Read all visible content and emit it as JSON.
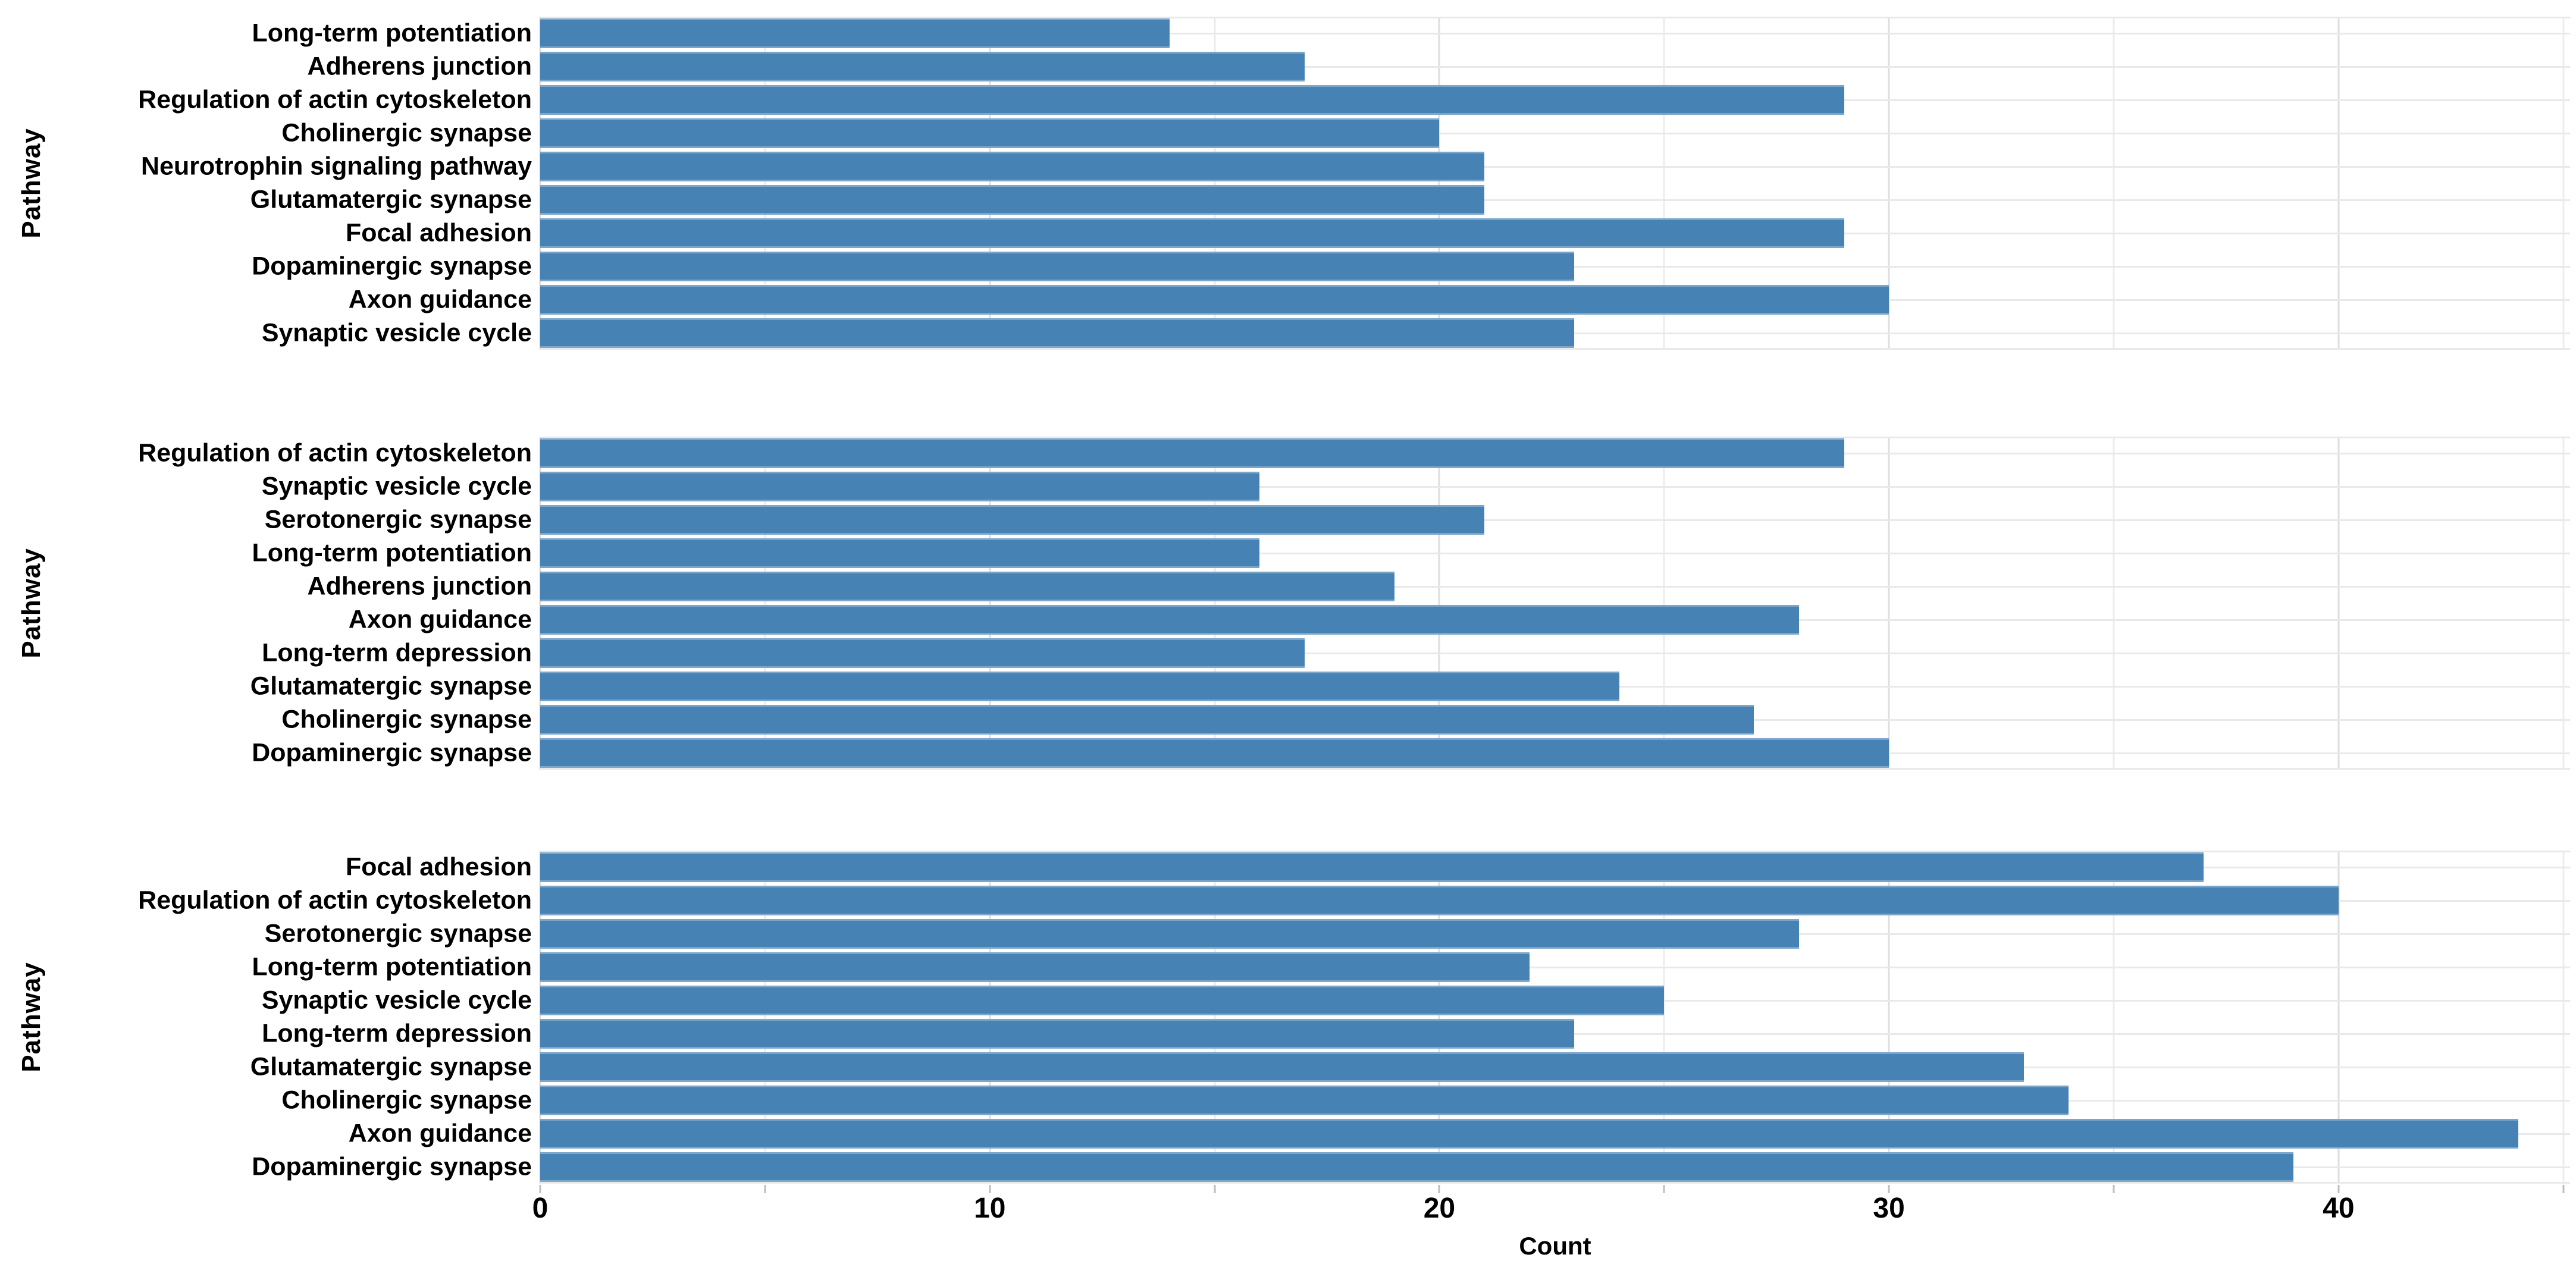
{
  "colors": {
    "bar": "#4682B4",
    "grid_major": "#dedede",
    "grid_minor": "#ececec",
    "grid_row": "#e9e9e9",
    "tick_mark": "#bdbdbd",
    "text": "#000000",
    "background": "#ffffff"
  },
  "axis": {
    "xlabel": "Count",
    "tick_labels": [
      "0",
      "10",
      "20",
      "30",
      "40"
    ],
    "tick_values": [
      0,
      10,
      20,
      30,
      40
    ],
    "minor_tick_values": [
      0,
      5,
      10,
      15,
      20,
      25,
      30,
      35,
      40,
      45
    ]
  },
  "chart_data": [
    {
      "type": "bar",
      "orientation": "horizontal",
      "ylabel": "Pathway",
      "xlabel": "Count",
      "xlim": [
        0,
        45.15
      ],
      "xticks": [
        0,
        10,
        20,
        30,
        40
      ],
      "grid": true,
      "legend": false,
      "categories": [
        "Long-term potentiation",
        "Adherens junction",
        "Regulation of actin cytoskeleton",
        "Cholinergic synapse",
        "Neurotrophin signaling pathway",
        "Glutamatergic synapse",
        "Focal adhesion",
        "Dopaminergic synapse",
        "Axon guidance",
        "Synaptic vesicle cycle"
      ],
      "values": [
        14,
        17,
        29,
        20,
        21,
        21,
        29,
        23,
        30,
        23
      ]
    },
    {
      "type": "bar",
      "orientation": "horizontal",
      "ylabel": "Pathway",
      "xlabel": "Count",
      "xlim": [
        0,
        45.15
      ],
      "xticks": [
        0,
        10,
        20,
        30,
        40
      ],
      "grid": true,
      "legend": false,
      "categories": [
        "Regulation of actin cytoskeleton",
        "Synaptic vesicle cycle",
        "Serotonergic synapse",
        "Long-term potentiation",
        "Adherens junction",
        "Axon guidance",
        "Long-term depression",
        "Glutamatergic synapse",
        "Cholinergic synapse",
        "Dopaminergic synapse"
      ],
      "values": [
        29,
        16,
        21,
        16,
        19,
        28,
        17,
        24,
        27,
        30
      ]
    },
    {
      "type": "bar",
      "orientation": "horizontal",
      "ylabel": "Pathway",
      "xlabel": "Count",
      "xlim": [
        0,
        45.15
      ],
      "xticks": [
        0,
        10,
        20,
        30,
        40
      ],
      "grid": true,
      "legend": false,
      "categories": [
        "Focal adhesion",
        "Regulation of actin cytoskeleton",
        "Serotonergic synapse",
        "Long-term potentiation",
        "Synaptic vesicle cycle",
        "Long-term depression",
        "Glutamatergic synapse",
        "Cholinergic synapse",
        "Axon guidance",
        "Dopaminergic synapse"
      ],
      "values": [
        37,
        40,
        28,
        22,
        25,
        23,
        33,
        34,
        44,
        39
      ]
    }
  ]
}
